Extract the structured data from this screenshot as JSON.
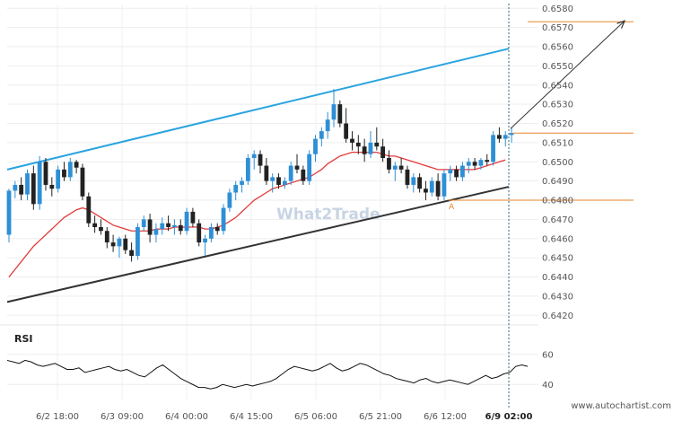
{
  "chart_data": {
    "type": "candlestick",
    "price_axis": {
      "ticks": [
        "0.6420",
        "0.6430",
        "0.6440",
        "0.6450",
        "0.6460",
        "0.6470",
        "0.6480",
        "0.6490",
        "0.6500",
        "0.6510",
        "0.6520",
        "0.6530",
        "0.6540",
        "0.6550",
        "0.6560",
        "0.6570",
        "0.6580"
      ],
      "range": [
        0.6415,
        0.6582
      ]
    },
    "x_axis": {
      "ticks": [
        "6/2 18:00",
        "6/3 09:00",
        "6/4 00:00",
        "6/4 15:00",
        "6/5 06:00",
        "6/5 21:00",
        "6/6 12:00",
        "6/9 02:00"
      ],
      "highlight": "6/9 02:00"
    },
    "rsi": {
      "label": "RSI",
      "ticks": [
        "60",
        "40"
      ],
      "range": [
        30,
        70
      ],
      "values": [
        56,
        55,
        54,
        56,
        55,
        53,
        52,
        53,
        54,
        52,
        50,
        50,
        51,
        48,
        49,
        50,
        51,
        52,
        50,
        49,
        50,
        48,
        46,
        45,
        48,
        51,
        53,
        50,
        47,
        44,
        42,
        40,
        38,
        38,
        37,
        38,
        40,
        39,
        38,
        39,
        40,
        39,
        40,
        41,
        42,
        44,
        47,
        50,
        52,
        51,
        50,
        49,
        50,
        52,
        54,
        51,
        49,
        50,
        52,
        54,
        53,
        51,
        49,
        47,
        46,
        44,
        43,
        42,
        41,
        43,
        44,
        42,
        41,
        42,
        43,
        42,
        41,
        40,
        42,
        44,
        46,
        44,
        45,
        47,
        48,
        52,
        53,
        52
      ]
    },
    "candles": [
      [
        0.6462,
        0.6486,
        0.6458,
        0.6485
      ],
      [
        0.6485,
        0.649,
        0.6481,
        0.6488
      ],
      [
        0.6488,
        0.6492,
        0.648,
        0.6483
      ],
      [
        0.6483,
        0.6496,
        0.648,
        0.6494
      ],
      [
        0.6494,
        0.6498,
        0.6475,
        0.6478
      ],
      [
        0.6478,
        0.6503,
        0.6475,
        0.65
      ],
      [
        0.65,
        0.6502,
        0.6485,
        0.6488
      ],
      [
        0.6488,
        0.6492,
        0.6482,
        0.6486
      ],
      [
        0.6486,
        0.6498,
        0.6484,
        0.6496
      ],
      [
        0.6496,
        0.65,
        0.649,
        0.6492
      ],
      [
        0.6492,
        0.6502,
        0.649,
        0.65
      ],
      [
        0.65,
        0.6501,
        0.6494,
        0.6497
      ],
      [
        0.6497,
        0.6499,
        0.648,
        0.6482
      ],
      [
        0.6482,
        0.6484,
        0.6466,
        0.6468
      ],
      [
        0.6468,
        0.6472,
        0.6463,
        0.6466
      ],
      [
        0.6466,
        0.647,
        0.6462,
        0.6464
      ],
      [
        0.6464,
        0.6466,
        0.6455,
        0.6458
      ],
      [
        0.6458,
        0.6462,
        0.6453,
        0.6456
      ],
      [
        0.6456,
        0.6461,
        0.645,
        0.646
      ],
      [
        0.646,
        0.6462,
        0.6452,
        0.6454
      ],
      [
        0.6454,
        0.6458,
        0.6448,
        0.6451
      ],
      [
        0.6451,
        0.6468,
        0.6449,
        0.6466
      ],
      [
        0.6466,
        0.6472,
        0.6464,
        0.647
      ],
      [
        0.647,
        0.6473,
        0.6458,
        0.6462
      ],
      [
        0.6462,
        0.6468,
        0.6458,
        0.6465
      ],
      [
        0.6465,
        0.6471,
        0.6462,
        0.6468
      ],
      [
        0.6468,
        0.6472,
        0.6464,
        0.6466
      ],
      [
        0.6466,
        0.647,
        0.6462,
        0.6467
      ],
      [
        0.6467,
        0.647,
        0.6462,
        0.6464
      ],
      [
        0.6464,
        0.6476,
        0.6462,
        0.6474
      ],
      [
        0.6474,
        0.6476,
        0.6466,
        0.6468
      ],
      [
        0.6468,
        0.647,
        0.6456,
        0.6458
      ],
      [
        0.6458,
        0.6462,
        0.6451,
        0.646
      ],
      [
        0.646,
        0.6468,
        0.6458,
        0.6466
      ],
      [
        0.6466,
        0.6468,
        0.6462,
        0.6464
      ],
      [
        0.6464,
        0.6478,
        0.6462,
        0.6476
      ],
      [
        0.6476,
        0.6486,
        0.6474,
        0.6484
      ],
      [
        0.6484,
        0.649,
        0.648,
        0.6488
      ],
      [
        0.6488,
        0.6492,
        0.6484,
        0.649
      ],
      [
        0.649,
        0.6504,
        0.6488,
        0.6502
      ],
      [
        0.6502,
        0.6506,
        0.6496,
        0.6504
      ],
      [
        0.6504,
        0.6506,
        0.6494,
        0.6498
      ],
      [
        0.6498,
        0.6502,
        0.6488,
        0.649
      ],
      [
        0.649,
        0.6494,
        0.6484,
        0.6492
      ],
      [
        0.6492,
        0.6494,
        0.6486,
        0.6488
      ],
      [
        0.6488,
        0.6492,
        0.6486,
        0.649
      ],
      [
        0.649,
        0.65,
        0.6488,
        0.6498
      ],
      [
        0.6498,
        0.6504,
        0.6494,
        0.6496
      ],
      [
        0.6496,
        0.6498,
        0.6488,
        0.649
      ],
      [
        0.649,
        0.6506,
        0.6488,
        0.6504
      ],
      [
        0.6504,
        0.6514,
        0.65,
        0.6512
      ],
      [
        0.6512,
        0.6518,
        0.6508,
        0.6516
      ],
      [
        0.6516,
        0.6526,
        0.6512,
        0.6522
      ],
      [
        0.6522,
        0.6538,
        0.6518,
        0.653
      ],
      [
        0.653,
        0.6532,
        0.6518,
        0.652
      ],
      [
        0.652,
        0.6528,
        0.651,
        0.6512
      ],
      [
        0.6512,
        0.6516,
        0.6506,
        0.651
      ],
      [
        0.651,
        0.6514,
        0.6504,
        0.6508
      ],
      [
        0.6508,
        0.6512,
        0.65,
        0.6504
      ],
      [
        0.6504,
        0.6516,
        0.6502,
        0.651
      ],
      [
        0.651,
        0.6518,
        0.6506,
        0.6508
      ],
      [
        0.6508,
        0.6512,
        0.65,
        0.6502
      ],
      [
        0.6502,
        0.6506,
        0.6494,
        0.6496
      ],
      [
        0.6496,
        0.65,
        0.649,
        0.6498
      ],
      [
        0.6498,
        0.6502,
        0.6494,
        0.6496
      ],
      [
        0.6496,
        0.6498,
        0.6486,
        0.6488
      ],
      [
        0.6488,
        0.6494,
        0.6484,
        0.6492
      ],
      [
        0.6492,
        0.6494,
        0.6484,
        0.6486
      ],
      [
        0.6486,
        0.649,
        0.648,
        0.6484
      ],
      [
        0.6484,
        0.6492,
        0.6482,
        0.649
      ],
      [
        0.649,
        0.6494,
        0.648,
        0.6482
      ],
      [
        0.6482,
        0.6496,
        0.648,
        0.6494
      ],
      [
        0.6494,
        0.6498,
        0.649,
        0.6496
      ],
      [
        0.6496,
        0.6498,
        0.649,
        0.6492
      ],
      [
        0.6492,
        0.65,
        0.649,
        0.6498
      ],
      [
        0.6498,
        0.6502,
        0.6494,
        0.65
      ],
      [
        0.65,
        0.6502,
        0.6496,
        0.6498
      ],
      [
        0.6498,
        0.6502,
        0.6496,
        0.6501
      ],
      [
        0.6501,
        0.6504,
        0.6498,
        0.65
      ],
      [
        0.65,
        0.6516,
        0.6498,
        0.6514
      ],
      [
        0.6514,
        0.6518,
        0.651,
        0.6512
      ],
      [
        0.6512,
        0.6516,
        0.6508,
        0.6514
      ],
      [
        0.6514,
        0.6518,
        0.651,
        0.6515
      ]
    ],
    "moving_average": [
      0.644,
      0.6444,
      0.6448,
      0.6452,
      0.6456,
      0.6459,
      0.6462,
      0.6465,
      0.6468,
      0.6471,
      0.6473,
      0.6475,
      0.6476,
      0.6475,
      0.6473,
      0.6471,
      0.6469,
      0.6467,
      0.6466,
      0.6465,
      0.6464,
      0.6464,
      0.6464,
      0.6464,
      0.6465,
      0.6465,
      0.6465,
      0.6466,
      0.6466,
      0.6466,
      0.6466,
      0.6466,
      0.6465,
      0.6465,
      0.6466,
      0.6467,
      0.6469,
      0.6471,
      0.6474,
      0.6477,
      0.648,
      0.6482,
      0.6484,
      0.6486,
      0.6487,
      0.6488,
      0.6489,
      0.649,
      0.6491,
      0.6492,
      0.6494,
      0.6496,
      0.6499,
      0.6501,
      0.6503,
      0.6504,
      0.6505,
      0.6505,
      0.6505,
      0.6505,
      0.6505,
      0.6504,
      0.6503,
      0.6503,
      0.6502,
      0.6501,
      0.65,
      0.6499,
      0.6498,
      0.6497,
      0.6496,
      0.6496,
      0.6496,
      0.6496,
      0.6496,
      0.6496,
      0.6496,
      0.6497,
      0.6498,
      0.6499,
      0.65,
      0.6501
    ],
    "channel": {
      "upper": {
        "from": [
          "6/2 start",
          0.6496
        ],
        "to": [
          "6/9 02:00",
          0.6559
        ]
      },
      "lower": {
        "from": [
          "6/2 start",
          0.6427
        ],
        "to": [
          "6/9 02:00",
          0.6487
        ]
      }
    },
    "levels": {
      "target": 0.6573,
      "current": 0.6515,
      "support": 0.648
    },
    "annotations": [
      "A"
    ],
    "colors": {
      "up": "#2e8fd6",
      "down": "#222222",
      "moving_average": "#e23a3a",
      "upper_channel": "#2aa4e0",
      "lower_channel": "#333333",
      "levels": "#e8862a",
      "projection": "#333333"
    }
  },
  "watermark": "What2Trade",
  "footer": "www.autochartist.com"
}
